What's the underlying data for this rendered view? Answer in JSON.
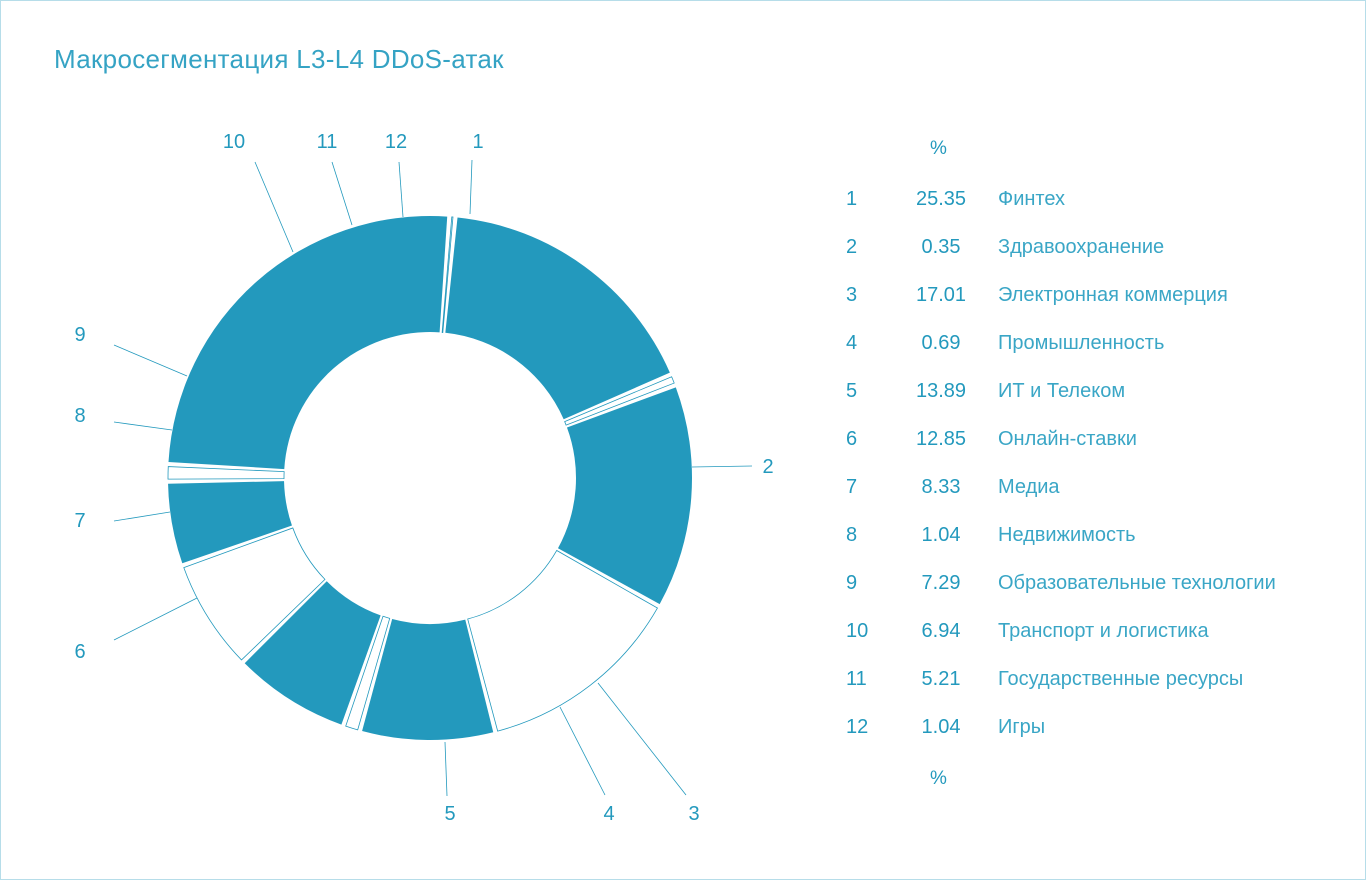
{
  "title": "Макросегментация L3-L4 DDoS-атак",
  "legend": {
    "unit_header_top": "%",
    "unit_header_bottom": "%"
  },
  "colors": {
    "filled": "#2399bd",
    "hollow": "#ffffff",
    "stroke": "#2399bd",
    "text": "#2399bd",
    "frame": "#b6dde9"
  },
  "chart_data": {
    "type": "pie",
    "style": "donut",
    "title": "Макросегментация L3-L4 DDoS-атак",
    "unit": "%",
    "categories": [
      "1",
      "2",
      "3",
      "4",
      "5",
      "6",
      "7",
      "8",
      "9",
      "10",
      "11",
      "12"
    ],
    "labels": [
      "Финтех",
      "Здравоохранение",
      "Электронная коммерция",
      "Промышленность",
      "ИТ и Телеком",
      "Онлайн-ставки",
      "Медиа",
      "Недвижимость",
      "Образовательные технологии",
      "Транспорт и логистика",
      "Государственные ресурсы",
      "Игры"
    ],
    "values": [
      25.35,
      0.35,
      17.01,
      0.69,
      13.89,
      12.85,
      8.33,
      1.04,
      7.29,
      6.94,
      5.21,
      1.04
    ],
    "value_labels": [
      "25.35",
      "0.35",
      "17.01",
      "0.69",
      "13.89",
      "12.85",
      "8.33",
      "1.04",
      "7.29",
      "6.94",
      "5.21",
      "1.04"
    ],
    "filled": [
      true,
      false,
      true,
      false,
      true,
      false,
      true,
      false,
      true,
      false,
      true,
      false
    ],
    "legend_position": "right"
  }
}
